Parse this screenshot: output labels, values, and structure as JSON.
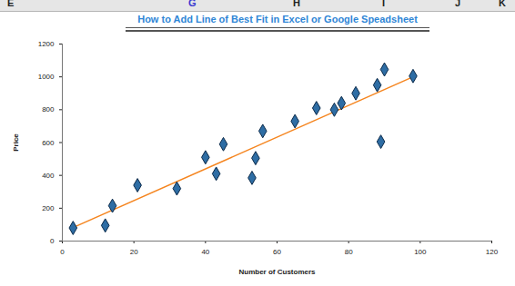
{
  "spreadsheet": {
    "column_headers": [
      "E",
      "G",
      "H",
      "I",
      "J",
      "K"
    ]
  },
  "chart_data": {
    "type": "scatter",
    "title": "How to Add Line of Best Fit in Excel or Google Speadsheet",
    "x_label": "Number of Customers",
    "y_label": "Price",
    "x": [
      3,
      12,
      14,
      21,
      32,
      40,
      43,
      45,
      53,
      54,
      56,
      65,
      71,
      76,
      78,
      82,
      88,
      89,
      90,
      98
    ],
    "values": [
      80,
      95,
      215,
      340,
      320,
      510,
      410,
      590,
      385,
      505,
      670,
      730,
      810,
      800,
      840,
      900,
      950,
      605,
      1045,
      1005
    ],
    "color": "#2e6da4",
    "marker": "diamond",
    "xlim": [
      0,
      120
    ],
    "xticks": [
      0,
      20,
      40,
      60,
      80,
      100,
      120
    ],
    "ylim": [
      0,
      1200
    ],
    "yticks": [
      0,
      200,
      400,
      600,
      800,
      1000,
      1200
    ],
    "grid": false,
    "trendline": {
      "x": [
        3,
        98
      ],
      "values": [
        82,
        1000
      ],
      "color": "#f5851f",
      "line_style": "solid"
    }
  }
}
